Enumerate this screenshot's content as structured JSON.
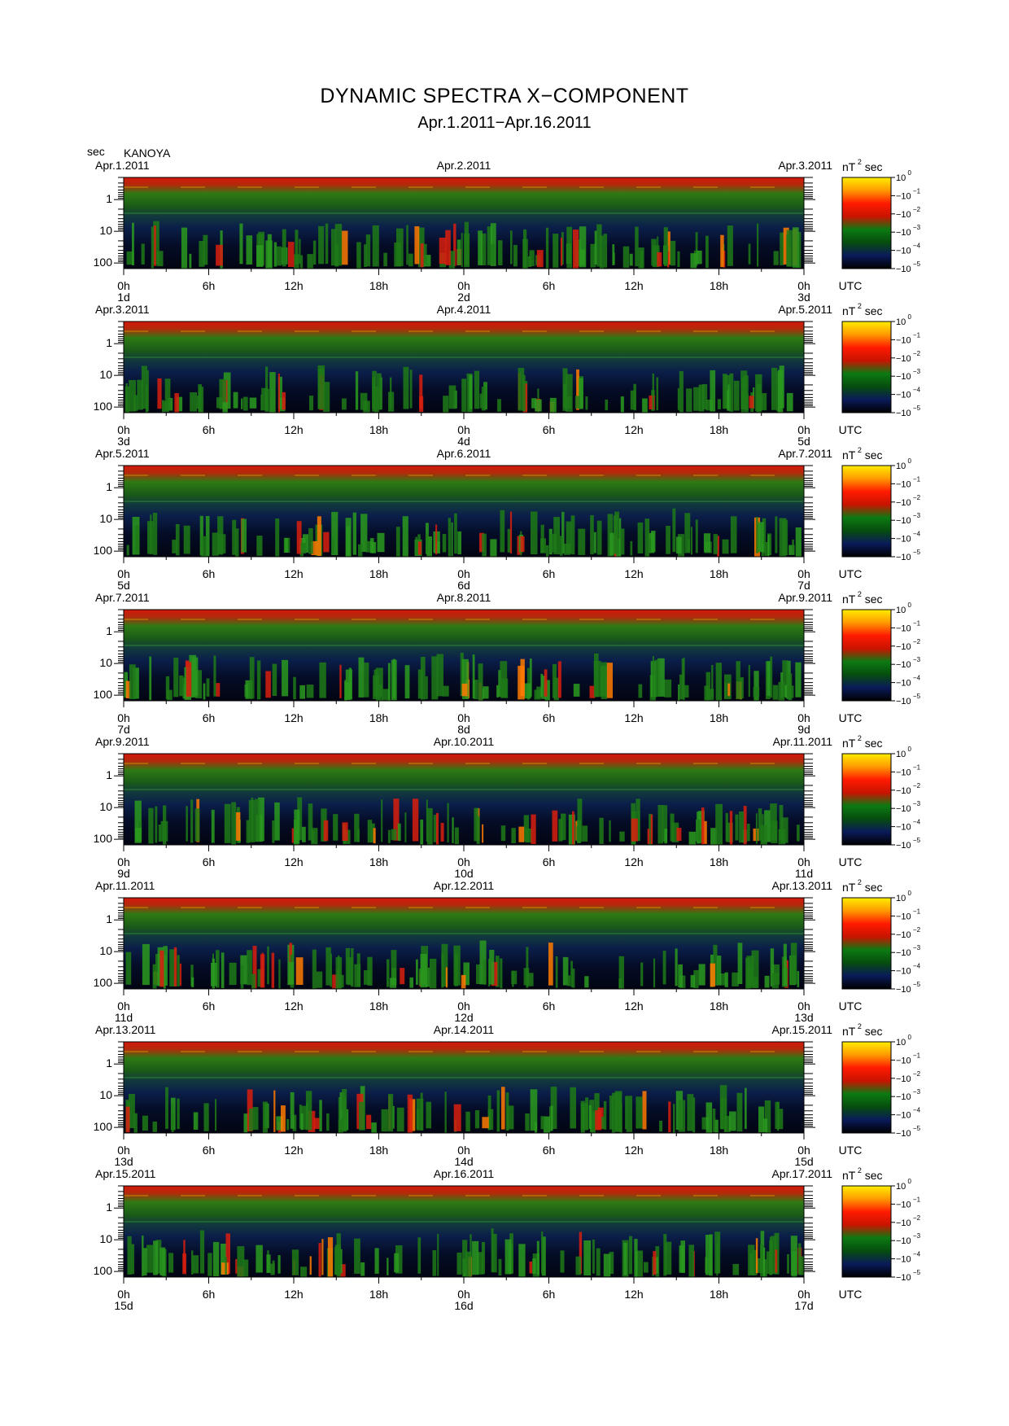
{
  "title": "DYNAMIC SPECTRA X−COMPONENT",
  "subtitle": "Apr.1.2011−Apr.16.2011",
  "y_unit": "sec",
  "station": "KANOYA",
  "colorbar": {
    "unit_base": "nT",
    "unit_sup": "2",
    "unit_rest": "sec",
    "ticks": [
      {
        "base": "10",
        "exp": "0"
      },
      {
        "base": "−10",
        "exp": "−1"
      },
      {
        "base": "−10",
        "exp": "−2"
      },
      {
        "base": "−10",
        "exp": "−3"
      },
      {
        "base": "−10",
        "exp": "−4"
      },
      {
        "base": "−10",
        "exp": "−5"
      }
    ],
    "colors": [
      "#ffee00",
      "#ff9900",
      "#ff1a00",
      "#c81400",
      "#0c7a12",
      "#064d0e",
      "#0a1a5a",
      "#000000"
    ]
  },
  "x_ticks": [
    "0h",
    "6h",
    "12h",
    "18h",
    "0h",
    "6h",
    "12h",
    "18h",
    "0h"
  ],
  "x_unit": "UTC",
  "chart_data": {
    "type": "heatmap",
    "xlabel": "UTC",
    "ylabel": "sec",
    "yscale": "log",
    "y_ticks": [
      "1",
      "10",
      "100"
    ],
    "panels": [
      {
        "start": "Apr.1.2011",
        "mid": "Apr.2.2011",
        "end": "Apr.3.2011",
        "days": [
          "1d",
          "2d",
          "3d"
        ]
      },
      {
        "start": "Apr.3.2011",
        "mid": "Apr.4.2011",
        "end": "Apr.5.2011",
        "days": [
          "3d",
          "4d",
          "5d"
        ]
      },
      {
        "start": "Apr.5.2011",
        "mid": "Apr.6.2011",
        "end": "Apr.7.2011",
        "days": [
          "5d",
          "6d",
          "7d"
        ]
      },
      {
        "start": "Apr.7.2011",
        "mid": "Apr.8.2011",
        "end": "Apr.9.2011",
        "days": [
          "7d",
          "8d",
          "9d"
        ]
      },
      {
        "start": "Apr.9.2011",
        "mid": "Apr.10.2011",
        "end": "Apr.11.2011",
        "days": [
          "9d",
          "10d",
          "11d"
        ]
      },
      {
        "start": "Apr.11.2011",
        "mid": "Apr.12.2011",
        "end": "Apr.13.2011",
        "days": [
          "11d",
          "12d",
          "13d"
        ]
      },
      {
        "start": "Apr.13.2011",
        "mid": "Apr.14.2011",
        "end": "Apr.15.2011",
        "days": [
          "13d",
          "14d",
          "15d"
        ]
      },
      {
        "start": "Apr.15.2011",
        "mid": "Apr.16.2011",
        "end": "Apr.17.2011",
        "days": [
          "15d",
          "16d",
          "17d"
        ]
      }
    ]
  }
}
